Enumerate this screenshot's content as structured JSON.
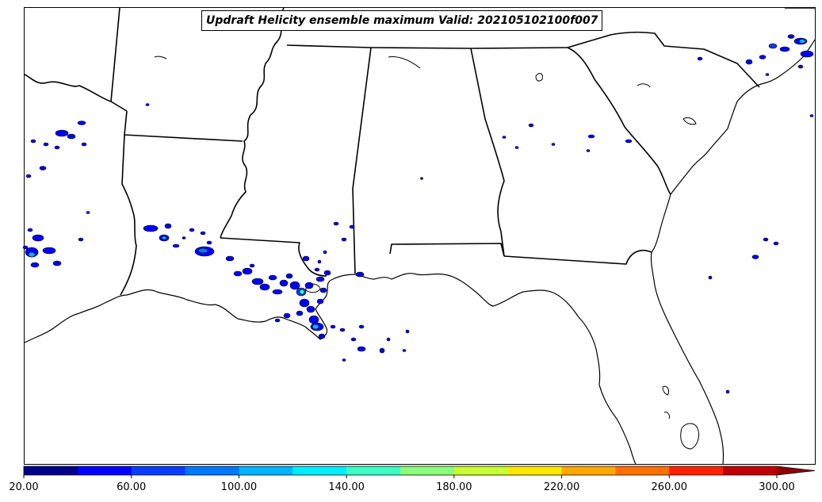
{
  "map": {
    "title": "Updraft Helicity ensemble maximum Valid: 202105102100f007",
    "features": [
      "state-boundaries",
      "coastlines",
      "lakes"
    ],
    "region": "Southeastern United States (Texas–Louisiana Gulf Coast to South Carolina and Florida)"
  },
  "colorbar": {
    "min": 20,
    "max": 300,
    "interval": 20,
    "extend": "max",
    "colors": [
      "#00008b",
      "#0000ff",
      "#0a3dff",
      "#0077ff",
      "#00b4ff",
      "#00ecff",
      "#39ffc4",
      "#8bff7c",
      "#c8ff30",
      "#ffe600",
      "#ffa900",
      "#ff7000",
      "#ff2200",
      "#c00000",
      "#8b0000"
    ],
    "tick_labels": [
      "20.00",
      "60.00",
      "100.00",
      "140.00",
      "180.00",
      "220.00",
      "260.00",
      "300.00"
    ]
  }
}
